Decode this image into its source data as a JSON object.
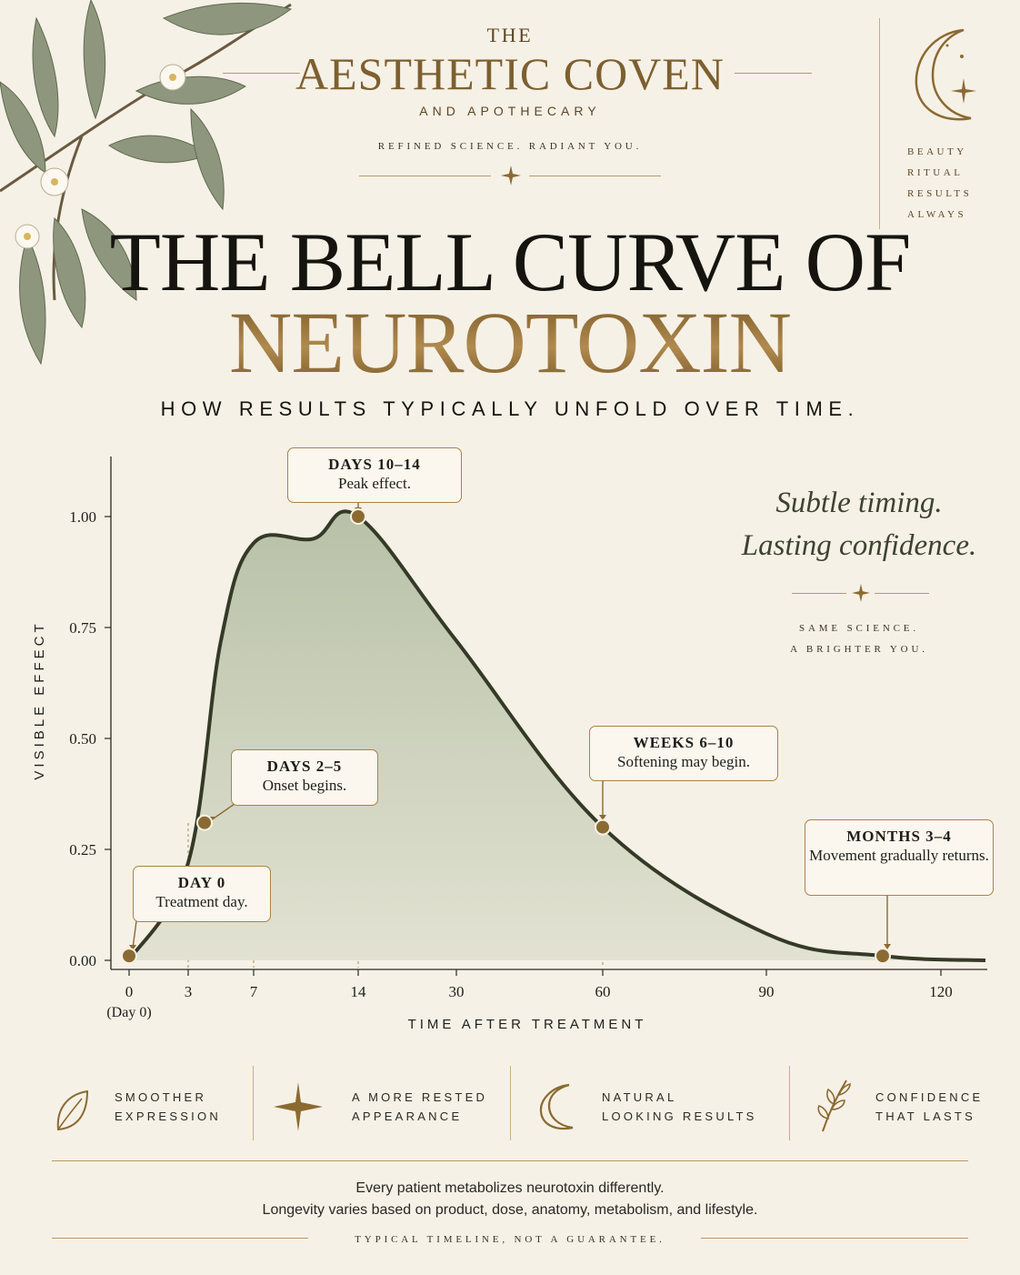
{
  "brand": {
    "the": "THE",
    "name": "AESTHETIC COVEN",
    "sub": "AND APOTHECARY",
    "tagline": "REFINED SCIENCE. RADIANT YOU."
  },
  "side_words": [
    "BEAUTY",
    "RITUAL",
    "RESULTS",
    "ALWAYS"
  ],
  "title_line1": "THE BELL CURVE OF",
  "title_line2": "NEUROTOXIN",
  "subtitle": "HOW RESULTS TYPICALLY UNFOLD OVER TIME.",
  "quote": {
    "line1": "Subtle timing.",
    "line2": "Lasting confidence.",
    "sub1": "SAME SCIENCE.",
    "sub2": "A BRIGHTER YOU."
  },
  "chart_data": {
    "type": "area",
    "xlabel": "TIME AFTER TREATMENT",
    "ylabel": "VISIBLE EFFECT",
    "ylim": [
      0,
      1.0
    ],
    "y_ticks": [
      "0.00",
      "0.25",
      "0.50",
      "0.75",
      "1.00"
    ],
    "x_ticks": [
      "0",
      "3",
      "7",
      "14",
      "30",
      "60",
      "90",
      "120"
    ],
    "x_tick_sublabel": "(Day 0)",
    "curve": [
      {
        "x": "0",
        "y": 0.0
      },
      {
        "x": "3",
        "y": 0.22
      },
      {
        "x": "5",
        "y": 0.72
      },
      {
        "x": "7",
        "y": 0.94
      },
      {
        "x": "11",
        "y": 0.95
      },
      {
        "x": "14",
        "y": 1.0
      },
      {
        "x": "30",
        "y": 0.72
      },
      {
        "x": "60",
        "y": 0.3
      },
      {
        "x": "90",
        "y": 0.06
      },
      {
        "x": "110",
        "y": 0.01
      },
      {
        "x": "130",
        "y": 0.0
      }
    ],
    "markers": [
      {
        "x": "0",
        "y": 0.01,
        "title": "DAY 0",
        "desc": "Treatment day."
      },
      {
        "x": "4",
        "y": 0.31,
        "title": "DAYS 2–5",
        "desc": "Onset begins."
      },
      {
        "x": "14",
        "y": 1.0,
        "title": "DAYS 10–14",
        "desc": "Peak effect."
      },
      {
        "x": "60",
        "y": 0.3,
        "title": "WEEKS 6–10",
        "desc": "Softening may begin."
      },
      {
        "x": "110",
        "y": 0.01,
        "title": "MONTHS 3–4",
        "desc": "Movement gradually returns."
      }
    ]
  },
  "features": [
    {
      "line1": "SMOOTHER",
      "line2": "EXPRESSION",
      "icon": "leaf-icon"
    },
    {
      "line1": "A MORE RESTED",
      "line2": "APPEARANCE",
      "icon": "sparkle-icon"
    },
    {
      "line1": "NATURAL",
      "line2": "LOOKING RESULTS",
      "icon": "crescent-moon-icon"
    },
    {
      "line1": "CONFIDENCE",
      "line2": "THAT LASTS",
      "icon": "sprig-icon"
    }
  ],
  "footnote": {
    "line1": "Every patient metabolizes neurotoxin differently.",
    "line2": "Longevity varies based on product, dose, anatomy, metabolism, and lifestyle."
  },
  "footer_tag": "TYPICAL TIMELINE, NOT A GUARANTEE.",
  "colors": {
    "accent": "#8b6a32",
    "curve": "#343a26",
    "fill": "#bcc4ae",
    "background": "#f6f1e6"
  }
}
